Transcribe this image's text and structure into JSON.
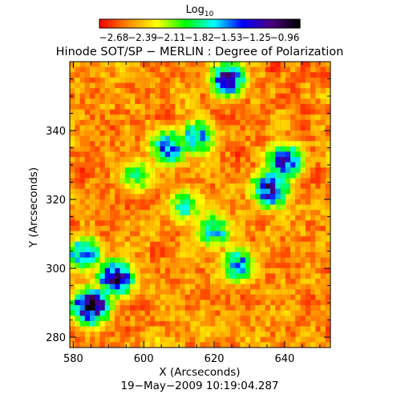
{
  "chart_data": {
    "type": "heatmap",
    "title": "Hinode SOT/SP − MERLIN : Degree of Polarization",
    "colorbar": {
      "label_base": "Log",
      "label_sub": "10",
      "ticks": [
        "−2.68",
        "−2.39",
        "−2.11",
        "−1.82",
        "−1.53",
        "−1.25",
        "−0.96"
      ],
      "range": [
        -2.68,
        -0.96
      ],
      "colormap": [
        "#ff0000",
        "#ff8c00",
        "#ffff00",
        "#00ff00",
        "#00ffff",
        "#0000ff",
        "#4b0082",
        "#000000"
      ]
    },
    "xlabel": "X (Arcseconds)",
    "ylabel": "Y (Arcseconds)",
    "xlim": [
      579,
      653
    ],
    "ylim": [
      277,
      360
    ],
    "xticks": [
      580,
      600,
      620,
      640
    ],
    "yticks": [
      280,
      300,
      320,
      340
    ],
    "grid": false,
    "high_polarization_regions": [
      {
        "x": 585,
        "y": 289,
        "level": -1.05
      },
      {
        "x": 592,
        "y": 297,
        "level": -1.2
      },
      {
        "x": 624,
        "y": 355,
        "level": -1.3
      },
      {
        "x": 636,
        "y": 323,
        "level": -1.25
      },
      {
        "x": 640,
        "y": 331,
        "level": -1.35
      },
      {
        "x": 607,
        "y": 335,
        "level": -1.5
      },
      {
        "x": 615,
        "y": 338,
        "level": -1.55
      },
      {
        "x": 627,
        "y": 301,
        "level": -1.6
      },
      {
        "x": 620,
        "y": 311,
        "level": -1.65
      },
      {
        "x": 583,
        "y": 304,
        "level": -1.5
      },
      {
        "x": 612,
        "y": 318,
        "level": -1.8
      },
      {
        "x": 598,
        "y": 327,
        "level": -1.85
      }
    ]
  },
  "timestamp": "19−May−2009 10:19:04.287"
}
